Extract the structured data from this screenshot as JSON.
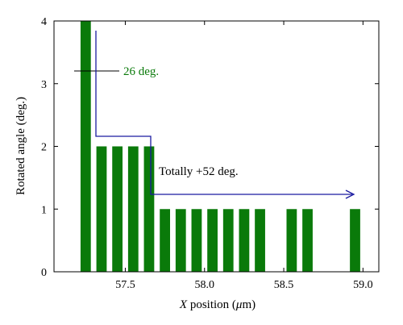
{
  "chart_data": {
    "type": "bar",
    "xlabel_italic": "X",
    "xlabel_rest": " position (",
    "xlabel_mu": "μ",
    "xlabel_unit": "m)",
    "ylabel": "Rotated angle (deg.)",
    "xlim": [
      57.05,
      59.1
    ],
    "ylim": [
      0,
      4
    ],
    "x_ticks": [
      57.5,
      58.0,
      58.5,
      59.0
    ],
    "x_tick_labels": [
      "57.5",
      "58.0",
      "58.5",
      "59.0"
    ],
    "y_ticks": [
      0,
      1,
      2,
      3,
      4
    ],
    "y_tick_labels": [
      "0",
      "1",
      "2",
      "3",
      "4"
    ],
    "bar_width": 0.065,
    "bar_color": "#0a7a0a",
    "x": [
      57.25,
      57.35,
      57.45,
      57.55,
      57.65,
      57.75,
      57.85,
      57.95,
      58.05,
      58.15,
      58.25,
      58.35,
      58.55,
      58.65,
      58.95
    ],
    "values": [
      4,
      2,
      2,
      2,
      2,
      1,
      1,
      1,
      1,
      1,
      1,
      1,
      1,
      1,
      1
    ],
    "grid": false,
    "annotations": [
      {
        "text": "26 deg.",
        "color": "#0a7a0a"
      },
      {
        "text": "Totally +52 deg.",
        "color": "#000000"
      }
    ],
    "arrow_color": "#1a1aa0"
  }
}
